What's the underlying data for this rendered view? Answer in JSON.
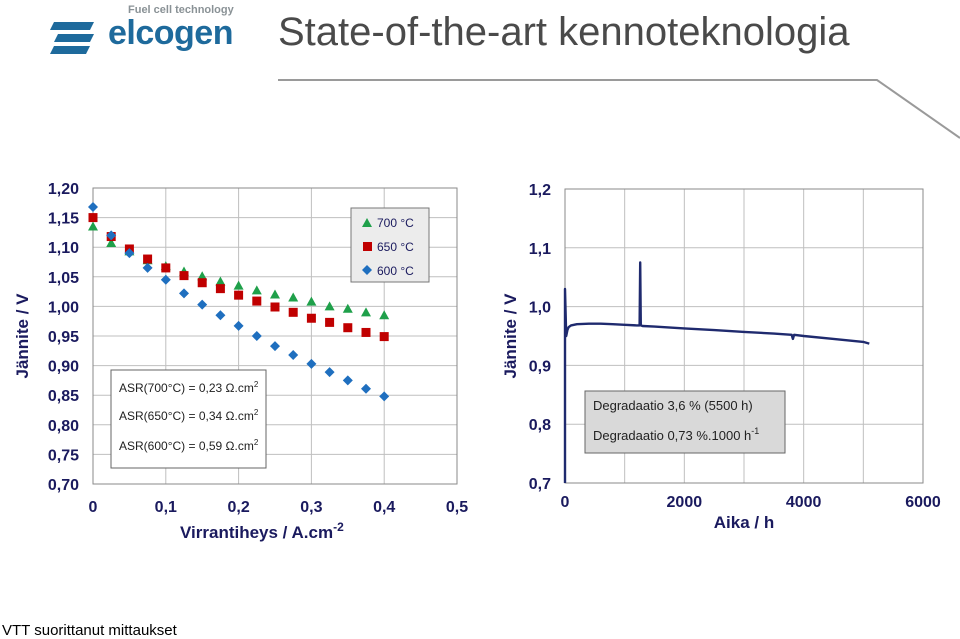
{
  "header": {
    "logo_tagline": "Fuel cell technology",
    "logo_name": "elcogen",
    "title": "State-of-the-art kennoteknologia"
  },
  "footer": {
    "text": "VTT suorittanut mittaukset"
  },
  "colors": {
    "s700": "#1fa04a",
    "s650": "#c00000",
    "s600": "#1f6fbf",
    "degradation": "#1f2a6e",
    "grid": "#bfbfbf"
  },
  "chart_data": [
    {
      "type": "scatter",
      "xlabel": "Virrantiheys  / A.cm",
      "xlabel_sup": "-2",
      "ylabel": "Jännite / V",
      "xlim": [
        0,
        0.5
      ],
      "ylim": [
        0.7,
        1.2
      ],
      "x_ticks": [
        "0",
        "0,1",
        "0,2",
        "0,3",
        "0,4",
        "0,5"
      ],
      "y_ticks": [
        "0,70",
        "0,75",
        "0,80",
        "0,85",
        "0,90",
        "0,95",
        "1,00",
        "1,05",
        "1,10",
        "1,15",
        "1,20"
      ],
      "grid": true,
      "legend_position": "top-right",
      "series": [
        {
          "name": "700 °C",
          "marker": "triangle",
          "x": [
            0,
            0.025,
            0.05,
            0.075,
            0.1,
            0.125,
            0.15,
            0.175,
            0.2,
            0.225,
            0.25,
            0.275,
            0.3,
            0.325,
            0.35,
            0.375,
            0.4
          ],
          "y": [
            1.135,
            1.107,
            1.093,
            1.078,
            1.068,
            1.059,
            1.051,
            1.042,
            1.035,
            1.027,
            1.02,
            1.015,
            1.008,
            1.0,
            0.996,
            0.99,
            0.985
          ]
        },
        {
          "name": "650 °C",
          "marker": "square",
          "x": [
            0,
            0.025,
            0.05,
            0.075,
            0.1,
            0.125,
            0.15,
            0.175,
            0.2,
            0.225,
            0.25,
            0.275,
            0.3,
            0.325,
            0.35,
            0.375,
            0.4
          ],
          "y": [
            1.15,
            1.118,
            1.097,
            1.08,
            1.065,
            1.052,
            1.04,
            1.03,
            1.019,
            1.009,
            0.999,
            0.99,
            0.98,
            0.973,
            0.964,
            0.956,
            0.949
          ]
        },
        {
          "name": "600 °C",
          "marker": "diamond",
          "x": [
            0,
            0.025,
            0.05,
            0.075,
            0.1,
            0.125,
            0.15,
            0.175,
            0.2,
            0.225,
            0.25,
            0.275,
            0.3,
            0.325,
            0.35,
            0.375,
            0.4
          ],
          "y": [
            1.168,
            1.12,
            1.09,
            1.065,
            1.045,
            1.022,
            1.003,
            0.985,
            0.967,
            0.95,
            0.933,
            0.918,
            0.903,
            0.889,
            0.875,
            0.861,
            0.848
          ]
        }
      ],
      "annotations": [
        {
          "text": "ASR(700°C) = 0,23 Ω.cm",
          "sup": "2"
        },
        {
          "text": "ASR(650°C) = 0,34 Ω.cm",
          "sup": "2"
        },
        {
          "text": "ASR(600°C) = 0,59 Ω.cm",
          "sup": "2"
        }
      ]
    },
    {
      "type": "line",
      "xlabel": "Aika / h",
      "ylabel": "Jännite / V",
      "xlim": [
        0,
        6000
      ],
      "ylim": [
        0.7,
        1.2
      ],
      "x_ticks": [
        "0",
        "2000",
        "4000",
        "6000"
      ],
      "y_ticks": [
        "0,7",
        "0,8",
        "0,9",
        "1,0",
        "1,1",
        "1,2"
      ],
      "grid": true,
      "series": [
        {
          "x": [
            0,
            0,
            20,
            40,
            60,
            100,
            200,
            400,
            600,
            800,
            1000,
            1200,
            1250,
            1260,
            1270,
            1300,
            1500,
            2000,
            2500,
            3000,
            3500,
            3800,
            3820,
            3840,
            4000,
            4500,
            5000,
            5100
          ],
          "y": [
            0.7,
            1.03,
            0.95,
            0.96,
            0.965,
            0.968,
            0.97,
            0.971,
            0.971,
            0.97,
            0.969,
            0.968,
            0.968,
            1.075,
            0.968,
            0.967,
            0.966,
            0.963,
            0.96,
            0.957,
            0.954,
            0.952,
            0.945,
            0.952,
            0.95,
            0.945,
            0.94,
            0.937
          ]
        }
      ],
      "annotations": [
        {
          "text": "Degradaatio 3,6 % (5500 h)"
        },
        {
          "text": "Degradaatio 0,73 %.1000 h",
          "sup": "-1"
        }
      ]
    }
  ]
}
